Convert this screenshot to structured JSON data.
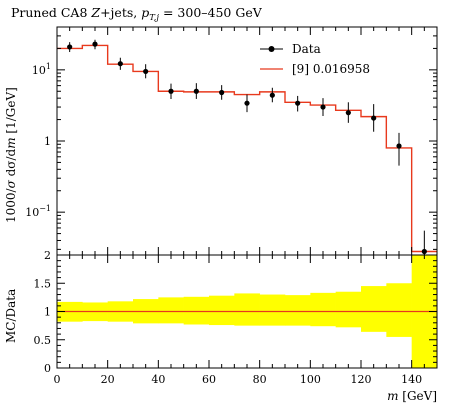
{
  "chart_data": [
    {
      "type": "line",
      "title": "Pruned CA8 Z+jets, p_{T,j} = 300–450 GeV",
      "title_parts": {
        "prefix": "Pruned CA8 ",
        "z": "Z",
        "mid": "+jets, ",
        "pt": "p",
        "sub": "T,j",
        "range": " = 300–450 GeV"
      },
      "ylabel": "1000/σ dσ/dm [1/GeV]",
      "ylabel_parts": {
        "a": "1000/",
        "sigma": "σ",
        "b": " dσ/d",
        "m": "m",
        "c": " [1/GeV]"
      },
      "yscale": "log",
      "ylim": [
        0.025,
        40
      ],
      "xlim": [
        0,
        150
      ],
      "yticks": [
        {
          "value": 0.1,
          "base": "10",
          "exp": "−1"
        },
        {
          "value": 1,
          "label": "1"
        },
        {
          "value": 10,
          "base": "10",
          "exp": "1"
        }
      ],
      "legend": {
        "position": "top-right"
      },
      "series": [
        {
          "name": "Data",
          "style": "markers-errorbars",
          "color": "#000000",
          "x": [
            5,
            15,
            25,
            35,
            45,
            55,
            65,
            75,
            85,
            95,
            105,
            115,
            125,
            135,
            145
          ],
          "y": [
            21,
            23,
            12.2,
            9.5,
            5.0,
            5.0,
            4.8,
            3.4,
            4.4,
            3.4,
            3.0,
            2.5,
            2.1,
            0.85,
            0.028
          ],
          "yerr_low": [
            17.8,
            19.5,
            10.0,
            7.6,
            3.9,
            3.9,
            3.8,
            2.55,
            3.5,
            2.6,
            2.25,
            1.8,
            1.35,
            0.45,
            0.013
          ],
          "yerr_high": [
            24.5,
            26.5,
            14.8,
            12.0,
            6.4,
            6.5,
            6.1,
            4.5,
            5.6,
            4.3,
            4.0,
            3.5,
            3.3,
            1.3,
            0.055
          ]
        },
        {
          "name": "[9] 0.016958",
          "style": "step",
          "color": "#e8391d",
          "bin_edges": [
            0,
            10,
            20,
            30,
            40,
            50,
            60,
            70,
            80,
            90,
            100,
            110,
            120,
            130,
            140,
            150
          ],
          "values": [
            20,
            22,
            12,
            9.5,
            5.0,
            4.9,
            4.9,
            4.5,
            4.9,
            3.5,
            3.2,
            2.7,
            2.2,
            0.8,
            0.028
          ]
        }
      ]
    },
    {
      "type": "line",
      "xlabel": "m [GeV]",
      "xlabel_parts": {
        "m": "m",
        "unit": " [GeV]"
      },
      "ylabel": "MC/Data",
      "ylim": [
        0,
        2
      ],
      "xlim": [
        0,
        150
      ],
      "yticks": [
        "0",
        "0.5",
        "1",
        "1.5",
        "2"
      ],
      "xticks": [
        "0",
        "20",
        "40",
        "60",
        "80",
        "100",
        "120",
        "140"
      ],
      "band": {
        "color": "#ffff00",
        "bin_edges": [
          0,
          10,
          20,
          30,
          40,
          50,
          60,
          70,
          80,
          90,
          100,
          110,
          120,
          130,
          140,
          150
        ],
        "low": [
          0.82,
          0.83,
          0.82,
          0.79,
          0.79,
          0.77,
          0.76,
          0.75,
          0.75,
          0.75,
          0.74,
          0.72,
          0.64,
          0.55,
          0
        ],
        "high": [
          1.17,
          1.16,
          1.18,
          1.22,
          1.25,
          1.26,
          1.28,
          1.32,
          1.3,
          1.29,
          1.33,
          1.35,
          1.45,
          1.5,
          2
        ]
      },
      "ratio_line": {
        "color": "#e8391d",
        "value": 1
      }
    }
  ]
}
